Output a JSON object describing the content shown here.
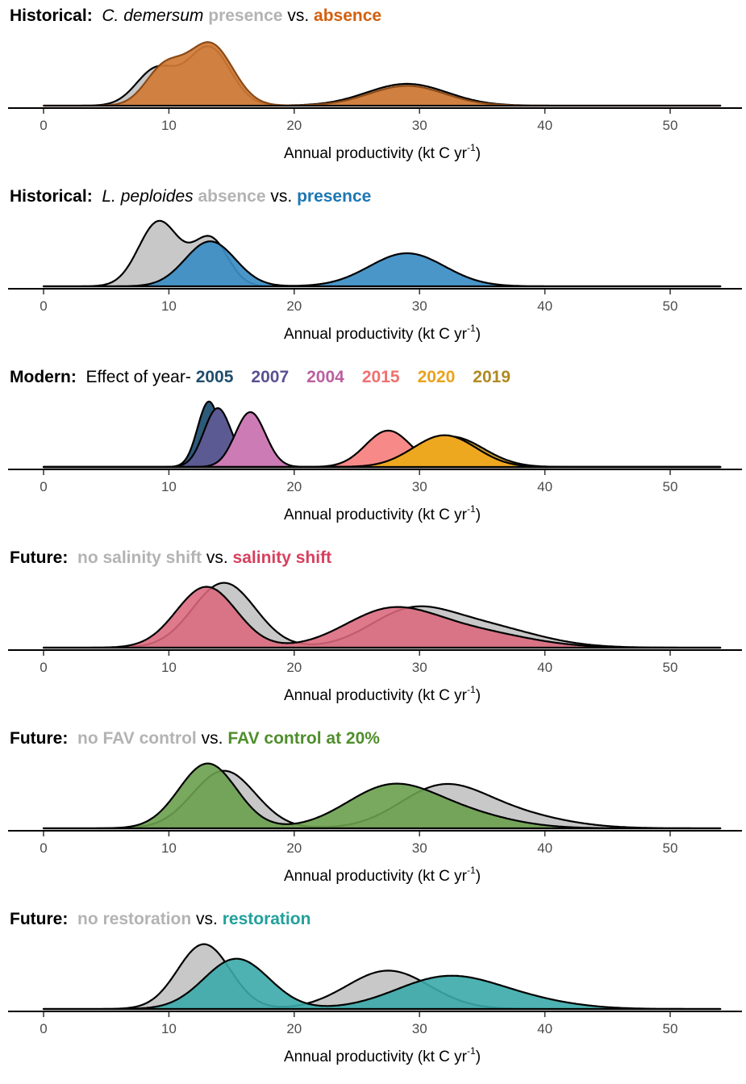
{
  "chart_data": [
    {
      "type": "area",
      "title_parts": [
        {
          "text": "Historical:",
          "style": "lead"
        },
        {
          "text": "C. demersum",
          "style": "species"
        },
        {
          "text": "presence",
          "style": "key",
          "color": "#b3b3b3"
        },
        {
          "text": "vs.",
          "style": "plain"
        },
        {
          "text": "absence",
          "style": "key",
          "color": "#d35f0e"
        }
      ],
      "xlabel": "Annual productivity (kt C yr",
      "xlabel_sup": "-1",
      "xlabel_end": ")",
      "xlim": [
        0,
        54
      ],
      "ticks": [
        0,
        10,
        20,
        30,
        40,
        50
      ],
      "tick_labels": [
        "0",
        "10",
        "20",
        "30",
        "40",
        "50"
      ],
      "series": [
        {
          "label": "presence",
          "fill": "#c8c8c8",
          "stroke": "#000000",
          "peaks": [
            {
              "mu": 9.0,
              "sigma": 1.6,
              "h": 0.55
            },
            {
              "mu": 13.2,
              "sigma": 1.7,
              "h": 0.88
            },
            {
              "mu": 29.0,
              "sigma": 3.2,
              "h": 0.33
            }
          ]
        },
        {
          "label": "absence",
          "fill": "#d07a34",
          "fill_opacity": 0.92,
          "stroke": "#8a4a18",
          "peaks": [
            {
              "mu": 9.6,
              "sigma": 1.5,
              "h": 0.55
            },
            {
              "mu": 13.3,
              "sigma": 1.8,
              "h": 0.93
            },
            {
              "mu": 29.0,
              "sigma": 3.0,
              "h": 0.3
            }
          ]
        }
      ]
    },
    {
      "type": "area",
      "title_parts": [
        {
          "text": "Historical:",
          "style": "lead"
        },
        {
          "text": "L. peploides",
          "style": "species"
        },
        {
          "text": "absence",
          "style": "key",
          "color": "#b3b3b3"
        },
        {
          "text": "vs.",
          "style": "plain"
        },
        {
          "text": "presence",
          "style": "key",
          "color": "#1d77b3"
        }
      ],
      "xlabel": "Annual productivity (kt C yr",
      "xlabel_sup": "-1",
      "xlabel_end": ")",
      "xlim": [
        0,
        54
      ],
      "ticks": [
        0,
        10,
        20,
        30,
        40,
        50
      ],
      "tick_labels": [
        "0",
        "10",
        "20",
        "30",
        "40",
        "50"
      ],
      "series": [
        {
          "label": "absence",
          "fill": "#c8c8c8",
          "stroke": "#000000",
          "peaks": [
            {
              "mu": 9.2,
              "sigma": 1.6,
              "h": 0.98
            },
            {
              "mu": 13.3,
              "sigma": 1.4,
              "h": 0.72
            }
          ]
        },
        {
          "label": "presence",
          "fill": "#3b8dc4",
          "fill_opacity": 0.92,
          "stroke": "#000000",
          "peaks": [
            {
              "mu": 13.3,
              "sigma": 2.0,
              "h": 0.68
            },
            {
              "mu": 29.0,
              "sigma": 3.0,
              "h": 0.5
            }
          ]
        }
      ]
    },
    {
      "type": "area",
      "title_parts": [
        {
          "text": "Modern:",
          "style": "lead"
        },
        {
          "text": "Effect of year-",
          "style": "plain"
        },
        {
          "text": "2005",
          "style": "yr",
          "color": "#1f4e6e"
        },
        {
          "text": "2007",
          "style": "yr",
          "color": "#5a5192"
        },
        {
          "text": "2004",
          "style": "yr",
          "color": "#bb5f9e"
        },
        {
          "text": "2015",
          "style": "yr",
          "color": "#f07070"
        },
        {
          "text": "2020",
          "style": "yr",
          "color": "#eba21c"
        },
        {
          "text": "2019",
          "style": "yr",
          "color": "#b08a22"
        }
      ],
      "xlabel": "Annual productivity (kt C yr",
      "xlabel_sup": "-1",
      "xlabel_end": ")",
      "xlim": [
        0,
        54
      ],
      "ticks": [
        0,
        10,
        20,
        30,
        40,
        50
      ],
      "tick_labels": [
        "0",
        "10",
        "20",
        "30",
        "40",
        "50"
      ],
      "series": [
        {
          "label": "2005",
          "fill": "#2e5a7a",
          "stroke": "#000000",
          "peaks": [
            {
              "mu": 13.2,
              "sigma": 0.9,
              "h": 0.99
            }
          ]
        },
        {
          "label": "2015",
          "fill": "#f78a88",
          "stroke": "#000000",
          "peaks": [
            {
              "mu": 27.5,
              "sigma": 1.8,
              "h": 0.55
            }
          ]
        },
        {
          "label": "2007",
          "fill": "#5b5a92",
          "stroke": "#000000",
          "peaks": [
            {
              "mu": 13.9,
              "sigma": 1.1,
              "h": 0.89
            }
          ]
        },
        {
          "label": "2004",
          "fill": "#cd7bb5",
          "stroke": "#000000",
          "peaks": [
            {
              "mu": 16.5,
              "sigma": 1.2,
              "h": 0.83
            }
          ]
        },
        {
          "label": "2019",
          "fill": "#c9a232",
          "stroke": "#000000",
          "peaks": [
            {
              "mu": 32.5,
              "sigma": 2.6,
              "h": 0.46
            }
          ]
        },
        {
          "label": "2020",
          "fill": "#eea820",
          "stroke": "#000000",
          "peaks": [
            {
              "mu": 32.0,
              "sigma": 2.5,
              "h": 0.48
            }
          ]
        }
      ]
    },
    {
      "type": "area",
      "title_parts": [
        {
          "text": "Future:",
          "style": "lead"
        },
        {
          "text": "no salinity shift",
          "style": "key",
          "color": "#b3b3b3"
        },
        {
          "text": "vs.",
          "style": "plain"
        },
        {
          "text": "salinity shift",
          "style": "key",
          "color": "#d6405e"
        }
      ],
      "xlabel": "Annual productivity (kt C yr",
      "xlabel_sup": "-1",
      "xlabel_end": ")",
      "xlim": [
        0,
        54
      ],
      "ticks": [
        0,
        10,
        20,
        30,
        40,
        50
      ],
      "tick_labels": [
        "0",
        "10",
        "20",
        "30",
        "40",
        "50"
      ],
      "series": [
        {
          "label": "no salinity shift",
          "fill": "#c8c8c8",
          "stroke": "#000000",
          "peaks": [
            {
              "mu": 14.4,
              "sigma": 2.5,
              "h": 0.98
            },
            {
              "mu": 29.0,
              "sigma": 3.2,
              "h": 0.44
            },
            {
              "mu": 34.5,
              "sigma": 4.5,
              "h": 0.34
            }
          ]
        },
        {
          "label": "salinity shift",
          "fill": "#d9687b",
          "fill_opacity": 0.88,
          "stroke": "#000000",
          "peaks": [
            {
              "mu": 13.0,
              "sigma": 2.4,
              "h": 0.92
            },
            {
              "mu": 27.5,
              "sigma": 3.6,
              "h": 0.52
            },
            {
              "mu": 34.0,
              "sigma": 4.5,
              "h": 0.24
            }
          ]
        }
      ]
    },
    {
      "type": "area",
      "title_parts": [
        {
          "text": "Future:",
          "style": "lead"
        },
        {
          "text": "no FAV control",
          "style": "key",
          "color": "#b3b3b3"
        },
        {
          "text": "vs.",
          "style": "plain"
        },
        {
          "text": "FAV control at 20%",
          "style": "key",
          "color": "#4f8e2c"
        }
      ],
      "xlabel": "Annual productivity (kt C yr",
      "xlabel_sup": "-1",
      "xlabel_end": ")",
      "xlim": [
        0,
        54
      ],
      "ticks": [
        0,
        10,
        20,
        30,
        40,
        50
      ],
      "tick_labels": [
        "0",
        "10",
        "20",
        "30",
        "40",
        "50"
      ],
      "series": [
        {
          "label": "no FAV control",
          "fill": "#c8c8c8",
          "stroke": "#000000",
          "peaks": [
            {
              "mu": 14.4,
              "sigma": 2.5,
              "h": 0.87
            },
            {
              "mu": 31.5,
              "sigma": 3.3,
              "h": 0.5
            },
            {
              "mu": 36.0,
              "sigma": 4.5,
              "h": 0.26
            }
          ]
        },
        {
          "label": "FAV control at 20%",
          "fill": "#6a9e4e",
          "fill_opacity": 0.9,
          "stroke": "#000000",
          "peaks": [
            {
              "mu": 13.1,
              "sigma": 2.3,
              "h": 0.98
            },
            {
              "mu": 27.5,
              "sigma": 3.5,
              "h": 0.58
            },
            {
              "mu": 33.0,
              "sigma": 4.0,
              "h": 0.22
            }
          ]
        }
      ]
    },
    {
      "type": "area",
      "title_parts": [
        {
          "text": "Future:",
          "style": "lead"
        },
        {
          "text": "no restoration",
          "style": "key",
          "color": "#b3b3b3"
        },
        {
          "text": "vs.",
          "style": "plain"
        },
        {
          "text": "restoration",
          "style": "key",
          "color": "#21a09c"
        }
      ],
      "xlabel": "Annual productivity (kt C yr",
      "xlabel_sup": "-1",
      "xlabel_end": ")",
      "xlim": [
        0,
        54
      ],
      "ticks": [
        0,
        10,
        20,
        30,
        40,
        50
      ],
      "tick_labels": [
        "0",
        "10",
        "20",
        "30",
        "40",
        "50"
      ],
      "series": [
        {
          "label": "no restoration",
          "fill": "#c8c8c8",
          "stroke": "#000000",
          "peaks": [
            {
              "mu": 12.8,
              "sigma": 2.1,
              "h": 0.98
            },
            {
              "mu": 27.5,
              "sigma": 3.3,
              "h": 0.58
            }
          ]
        },
        {
          "label": "restoration",
          "fill": "#3aaaa8",
          "fill_opacity": 0.9,
          "stroke": "#000000",
          "peaks": [
            {
              "mu": 15.4,
              "sigma": 2.6,
              "h": 0.76
            },
            {
              "mu": 32.0,
              "sigma": 4.0,
              "h": 0.46
            },
            {
              "mu": 38.0,
              "sigma": 4.0,
              "h": 0.12
            }
          ]
        }
      ]
    }
  ]
}
